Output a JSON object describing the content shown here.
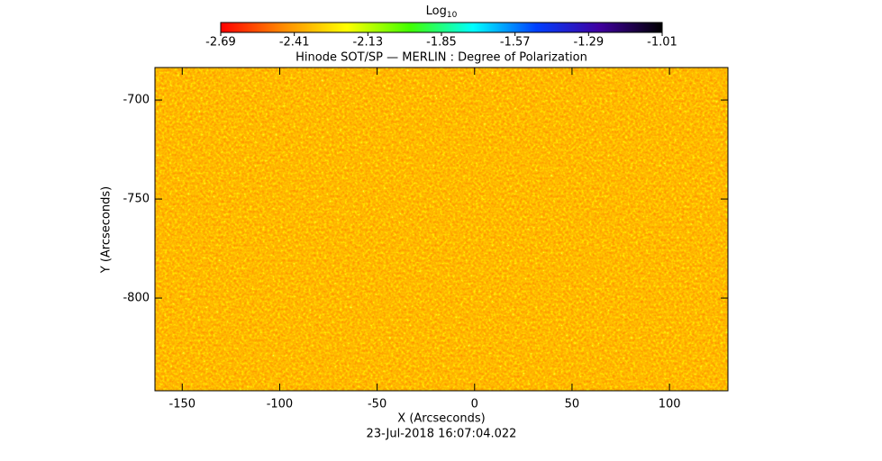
{
  "chart_data": {
    "type": "heatmap",
    "title": "Hinode SOT/SP — MERLIN : Degree of Polarization",
    "x_label": "X (Arcseconds)",
    "y_label": "Y (Arcseconds)",
    "footer": "23-Jul-2018 16:07:04.022",
    "xlim": [
      -164,
      130
    ],
    "xticks": [
      -150,
      -100,
      -50,
      0,
      50,
      100
    ],
    "ylim": [
      -846.8,
      -683.6
    ],
    "yticks": [
      -700,
      -750,
      -800
    ],
    "colorbar": {
      "label": "Log",
      "label_sub": "10",
      "lim": [
        -2.69,
        -1.01
      ],
      "ticks": [
        -2.69,
        -2.41,
        -2.13,
        -1.85,
        -1.57,
        -1.29,
        -1.01
      ],
      "colors": [
        "#ff0000",
        "#ff8c00",
        "#ffff00",
        "#40ff00",
        "#00ffff",
        "#0040ff",
        "#4000a0",
        "#000000"
      ]
    }
  }
}
